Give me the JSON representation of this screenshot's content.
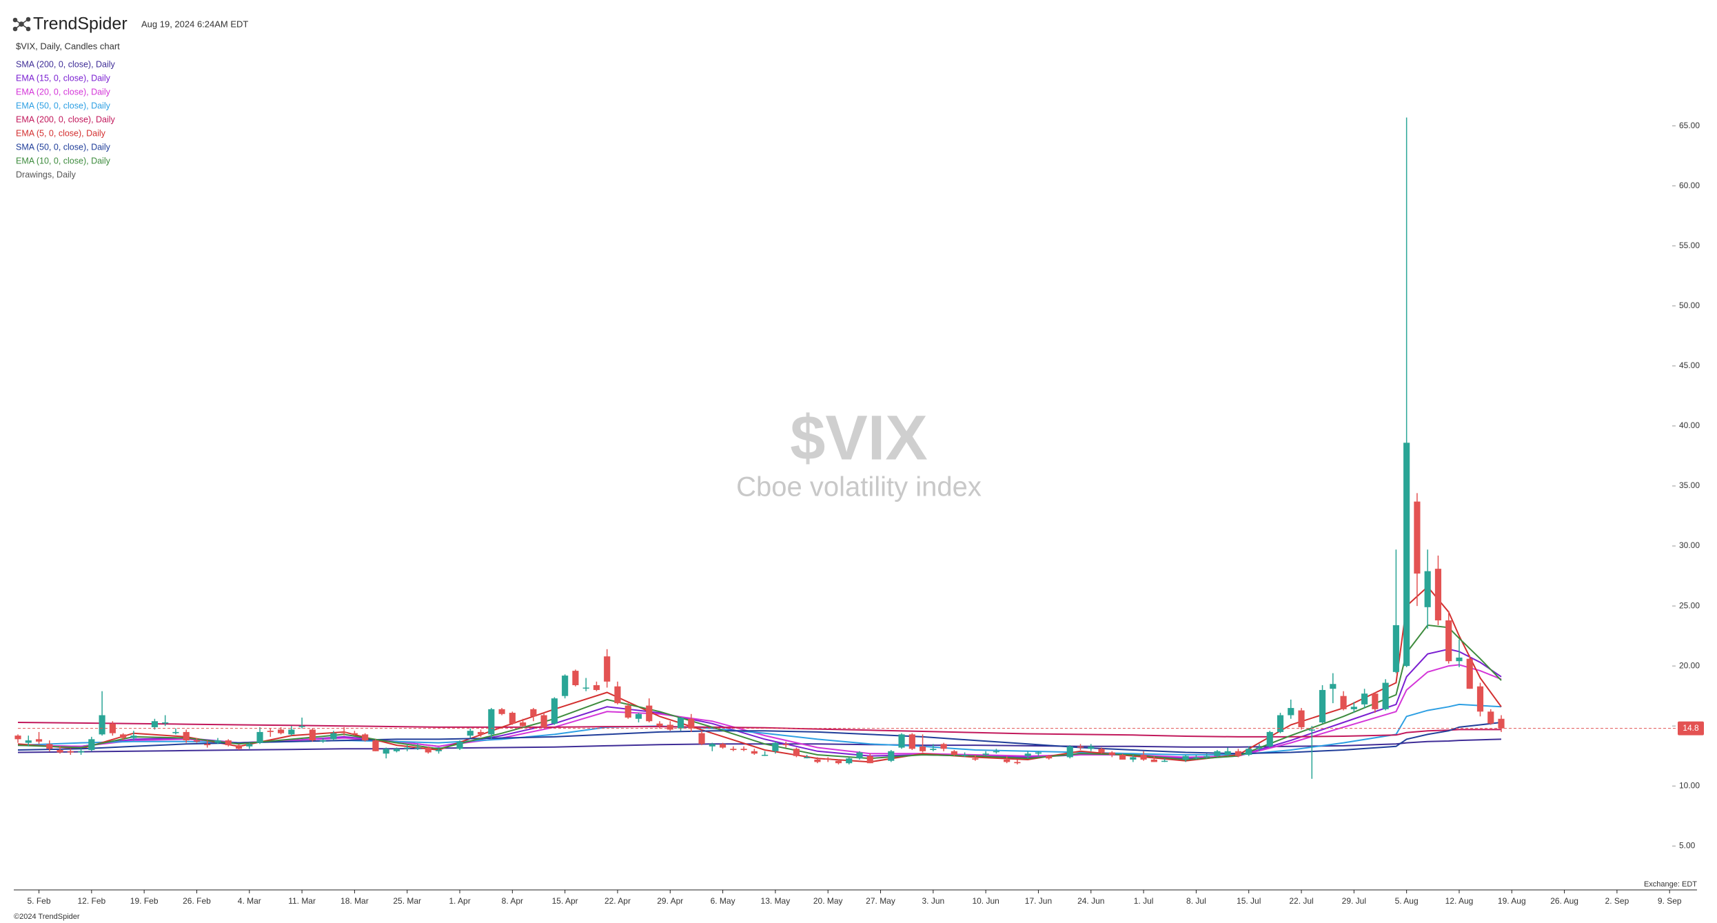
{
  "chart_data": {
    "type": "candlestick",
    "brand": "TrendSpider",
    "timestamp": "Aug 19, 2024 6:24AM EDT",
    "chart_label": "$VIX, Daily, Candles chart",
    "drawings_label": "Drawings, Daily",
    "watermark": {
      "title": "$VIX",
      "subtitle": "Cboe volatility index"
    },
    "exchange": "Exchange: EDT",
    "footer": "©2024 TrendSpider",
    "up_color": "#2aa596",
    "down_color": "#e35252",
    "last_price": 14.8,
    "ylim": [
      1.4,
      66.3
    ],
    "yticks": [
      {
        "value": 5,
        "label": "5.00"
      },
      {
        "value": 10,
        "label": "10.00"
      },
      {
        "value": 15,
        "label": "15.00"
      },
      {
        "value": 20,
        "label": "20.00"
      },
      {
        "value": 25,
        "label": "25.00"
      },
      {
        "value": 30,
        "label": "30.00"
      },
      {
        "value": 35,
        "label": "35.00"
      },
      {
        "value": 40,
        "label": "40.00"
      },
      {
        "value": 45,
        "label": "45.00"
      },
      {
        "value": 50,
        "label": "50.00"
      },
      {
        "value": 55,
        "label": "55.00"
      },
      {
        "value": 60,
        "label": "60.00"
      },
      {
        "value": 65,
        "label": "65.00"
      }
    ],
    "xlim": [
      "02-01",
      "09-12"
    ],
    "xticks": [
      {
        "value": "02-05",
        "label": "5. Feb"
      },
      {
        "value": "02-12",
        "label": "12. Feb"
      },
      {
        "value": "02-19",
        "label": "19. Feb"
      },
      {
        "value": "02-26",
        "label": "26. Feb"
      },
      {
        "value": "03-04",
        "label": "4. Mar"
      },
      {
        "value": "03-11",
        "label": "11. Mar"
      },
      {
        "value": "03-18",
        "label": "18. Mar"
      },
      {
        "value": "03-25",
        "label": "25. Mar"
      },
      {
        "value": "04-01",
        "label": "1. Apr"
      },
      {
        "value": "04-08",
        "label": "8. Apr"
      },
      {
        "value": "04-15",
        "label": "15. Apr"
      },
      {
        "value": "04-22",
        "label": "22. Apr"
      },
      {
        "value": "04-29",
        "label": "29. Apr"
      },
      {
        "value": "05-06",
        "label": "6. May"
      },
      {
        "value": "05-13",
        "label": "13. May"
      },
      {
        "value": "05-20",
        "label": "20. May"
      },
      {
        "value": "05-27",
        "label": "27. May"
      },
      {
        "value": "06-03",
        "label": "3. Jun"
      },
      {
        "value": "06-10",
        "label": "10. Jun"
      },
      {
        "value": "06-17",
        "label": "17. Jun"
      },
      {
        "value": "06-24",
        "label": "24. Jun"
      },
      {
        "value": "07-01",
        "label": "1. Jul"
      },
      {
        "value": "07-08",
        "label": "8. Jul"
      },
      {
        "value": "07-15",
        "label": "15. Jul"
      },
      {
        "value": "07-22",
        "label": "22. Jul"
      },
      {
        "value": "07-29",
        "label": "29. Jul"
      },
      {
        "value": "08-05",
        "label": "5. Aug"
      },
      {
        "value": "08-12",
        "label": "12. Aug"
      },
      {
        "value": "08-19",
        "label": "19. Aug"
      },
      {
        "value": "08-26",
        "label": "26. Aug"
      },
      {
        "value": "09-02",
        "label": "2. Sep"
      },
      {
        "value": "09-09",
        "label": "9. Sep"
      }
    ],
    "x": [
      "02-01",
      "02-02",
      "02-05",
      "02-06",
      "02-07",
      "02-08",
      "02-09",
      "02-12",
      "02-13",
      "02-14",
      "02-15",
      "02-16",
      "02-20",
      "02-21",
      "02-22",
      "02-23",
      "02-26",
      "02-27",
      "02-28",
      "02-29",
      "03-01",
      "03-04",
      "03-05",
      "03-06",
      "03-07",
      "03-08",
      "03-11",
      "03-12",
      "03-13",
      "03-14",
      "03-15",
      "03-18",
      "03-19",
      "03-20",
      "03-21",
      "03-22",
      "03-25",
      "03-26",
      "03-27",
      "03-28",
      "04-01",
      "04-02",
      "04-03",
      "04-04",
      "04-05",
      "04-08",
      "04-09",
      "04-10",
      "04-11",
      "04-12",
      "04-15",
      "04-16",
      "04-17",
      "04-18",
      "04-19",
      "04-22",
      "04-23",
      "04-24",
      "04-25",
      "04-26",
      "04-29",
      "04-30",
      "05-01",
      "05-02",
      "05-03",
      "05-06",
      "05-07",
      "05-08",
      "05-09",
      "05-10",
      "05-13",
      "05-14",
      "05-15",
      "05-16",
      "05-17",
      "05-20",
      "05-21",
      "05-22",
      "05-23",
      "05-24",
      "05-28",
      "05-29",
      "05-30",
      "05-31",
      "06-03",
      "06-04",
      "06-05",
      "06-06",
      "06-07",
      "06-10",
      "06-11",
      "06-12",
      "06-13",
      "06-14",
      "06-17",
      "06-18",
      "06-20",
      "06-21",
      "06-24",
      "06-25",
      "06-26",
      "06-27",
      "06-28",
      "07-01",
      "07-02",
      "07-03",
      "07-05",
      "07-08",
      "07-09",
      "07-10",
      "07-11",
      "07-12",
      "07-15",
      "07-16",
      "07-17",
      "07-18",
      "07-19",
      "07-22",
      "07-23",
      "07-24",
      "07-25",
      "07-26",
      "07-29",
      "07-30",
      "07-31",
      "08-01",
      "08-02",
      "08-05",
      "08-06",
      "08-07",
      "08-08",
      "08-09",
      "08-12",
      "08-13",
      "08-14",
      "08-15",
      "08-16"
    ],
    "open": [
      14.2,
      13.6,
      13.9,
      13.5,
      13.0,
      12.9,
      12.8,
      13.0,
      14.3,
      15.2,
      14.3,
      14.0,
      14.9,
      15.3,
      14.4,
      14.5,
      13.8,
      13.5,
      13.6,
      13.8,
      13.4,
      13.3,
      13.6,
      14.6,
      14.7,
      14.3,
      15.0,
      14.7,
      13.8,
      13.9,
      14.5,
      14.4,
      14.3,
      13.8,
      12.7,
      12.9,
      13.1,
      13.2,
      13.2,
      12.9,
      13.1,
      14.2,
      14.5,
      14.3,
      16.4,
      16.1,
      15.3,
      16.4,
      15.9,
      15.2,
      17.5,
      19.6,
      18.2,
      18.4,
      20.8,
      18.3,
      16.7,
      15.6,
      16.7,
      15.2,
      15.1,
      14.8,
      15.6,
      14.4,
      13.3,
      13.5,
      13.1,
      13.1,
      12.9,
      12.6,
      12.9,
      13.5,
      13.1,
      12.4,
      12.2,
      12.3,
      12.1,
      11.9,
      12.3,
      12.5,
      12.1,
      13.2,
      14.3,
      13.3,
      13.0,
      13.5,
      12.9,
      12.6,
      12.3,
      12.6,
      12.9,
      12.2,
      12.0,
      12.5,
      12.7,
      12.5,
      12.4,
      13.3,
      13.1,
      13.1,
      12.8,
      12.6,
      12.2,
      12.6,
      12.2,
      12.1,
      12.2,
      12.4,
      12.4,
      12.5,
      12.6,
      12.9,
      12.6,
      13.1,
      13.3,
      14.5,
      15.9,
      16.3,
      14.7,
      15.3,
      18.1,
      17.5,
      16.4,
      16.8,
      17.7,
      16.4,
      19.5,
      20.0,
      33.7,
      24.9,
      28.1,
      23.8,
      20.4,
      20.6,
      18.3,
      16.2,
      15.6
    ],
    "high": [
      14.3,
      14.2,
      14.5,
      13.8,
      13.3,
      13.1,
      13.1,
      14.1,
      17.9,
      15.4,
      14.4,
      14.6,
      15.6,
      15.9,
      14.8,
      14.7,
      14.0,
      13.8,
      14.0,
      13.9,
      13.5,
      13.6,
      14.9,
      14.8,
      14.9,
      15.0,
      15.7,
      14.8,
      14.0,
      14.6,
      14.9,
      14.6,
      14.4,
      13.9,
      13.2,
      13.2,
      13.4,
      13.5,
      13.3,
      13.1,
      13.8,
      14.8,
      14.7,
      16.5,
      16.5,
      16.2,
      15.6,
      16.5,
      16.1,
      17.4,
      19.3,
      19.7,
      19.0,
      18.7,
      21.4,
      18.7,
      16.9,
      16.1,
      17.3,
      15.4,
      15.4,
      15.7,
      16.0,
      14.6,
      13.6,
      13.6,
      13.3,
      13.3,
      13.1,
      12.9,
      13.7,
      13.7,
      13.2,
      12.6,
      12.4,
      12.4,
      12.2,
      12.4,
      12.9,
      12.7,
      13.0,
      14.4,
      14.4,
      14.3,
      13.5,
      13.6,
      13.0,
      12.8,
      12.6,
      12.9,
      13.1,
      12.5,
      12.2,
      12.9,
      12.9,
      12.6,
      13.4,
      13.5,
      13.5,
      13.2,
      12.9,
      12.7,
      12.6,
      12.9,
      12.5,
      12.3,
      12.6,
      12.6,
      12.7,
      13.0,
      13.2,
      13.1,
      13.3,
      13.5,
      14.6,
      16.1,
      17.2,
      16.5,
      15.0,
      18.4,
      19.4,
      17.9,
      17.0,
      18.1,
      17.8,
      18.9,
      29.7,
      65.7,
      34.4,
      29.7,
      29.2,
      24.6,
      22.2,
      20.9,
      18.6,
      16.4,
      15.9
    ],
    "low": [
      13.6,
      13.3,
      13.5,
      12.9,
      12.7,
      12.6,
      12.6,
      12.9,
      14.2,
      14.2,
      13.8,
      13.8,
      14.7,
      15.0,
      14.3,
      13.6,
      13.6,
      13.2,
      13.5,
      13.3,
      13.0,
      13.1,
      13.5,
      14.1,
      14.3,
      14.2,
      14.8,
      13.7,
      13.6,
      13.8,
      14.2,
      14.2,
      13.7,
      12.9,
      12.3,
      12.8,
      12.9,
      13.0,
      12.7,
      12.7,
      13.0,
      14.0,
      14.1,
      13.9,
      15.9,
      15.1,
      14.9,
      15.4,
      14.9,
      15.1,
      17.3,
      18.3,
      17.9,
      17.9,
      18.2,
      16.8,
      15.6,
      15.3,
      15.3,
      14.8,
      14.6,
      14.6,
      14.5,
      13.4,
      12.9,
      13.1,
      12.9,
      12.9,
      12.6,
      12.5,
      12.7,
      13.2,
      12.4,
      12.3,
      11.9,
      12.0,
      11.8,
      11.8,
      12.2,
      11.9,
      12.0,
      13.1,
      13.0,
      12.8,
      12.9,
      12.9,
      12.5,
      12.4,
      12.1,
      12.5,
      12.7,
      11.9,
      11.8,
      12.3,
      12.5,
      12.2,
      12.3,
      13.0,
      12.9,
      12.7,
      12.4,
      12.2,
      12.0,
      12.1,
      12.0,
      12.0,
      12.0,
      12.2,
      12.3,
      12.4,
      12.5,
      12.4,
      12.5,
      12.9,
      13.2,
      14.4,
      15.6,
      14.7,
      10.6,
      15.2,
      16.9,
      16.3,
      16.1,
      16.5,
      16.1,
      16.3,
      19.4,
      19.9,
      25.0,
      23.1,
      23.4,
      20.2,
      19.9,
      18.1,
      15.8,
      15.1,
      14.5
    ],
    "close": [
      13.9,
      13.8,
      13.7,
      13.1,
      12.8,
      12.8,
      12.9,
      13.9,
      15.9,
      14.4,
      14.0,
      14.2,
      15.4,
      15.3,
      14.5,
      13.8,
      13.7,
      13.4,
      13.8,
      13.4,
      13.1,
      13.5,
      14.5,
      14.5,
      14.4,
      14.7,
      15.0,
      13.8,
      13.8,
      14.4,
      14.4,
      14.3,
      13.8,
      12.9,
      13.1,
      13.1,
      13.2,
      13.2,
      12.8,
      13.0,
      13.7,
      14.6,
      14.3,
      16.4,
      16.0,
      15.2,
      15.0,
      15.8,
      14.9,
      17.3,
      19.2,
      18.4,
      18.2,
      18.0,
      18.7,
      16.9,
      15.7,
      16.0,
      15.4,
      15.0,
      14.7,
      15.7,
      14.8,
      13.5,
      13.5,
      13.2,
      13.0,
      13.0,
      12.7,
      12.6,
      13.6,
      13.4,
      12.5,
      12.4,
      12.0,
      12.2,
      11.9,
      12.3,
      12.8,
      11.9,
      12.9,
      14.3,
      13.1,
      12.9,
      13.1,
      13.1,
      12.6,
      12.6,
      12.2,
      12.7,
      12.9,
      12.0,
      11.9,
      12.7,
      12.8,
      12.3,
      13.3,
      13.2,
      13.3,
      12.8,
      12.6,
      12.2,
      12.4,
      12.2,
      12.0,
      12.1,
      12.5,
      12.4,
      12.5,
      12.9,
      12.9,
      12.5,
      13.1,
      13.2,
      14.5,
      15.9,
      16.5,
      14.9,
      14.7,
      18.0,
      18.5,
      16.4,
      16.6,
      17.7,
      16.4,
      18.6,
      23.4,
      38.6,
      27.7,
      27.9,
      23.8,
      20.4,
      20.7,
      18.1,
      16.2,
      15.2,
      14.8
    ],
    "indicators": {
      "x": [
        "02-01",
        "02-09",
        "02-16",
        "02-23",
        "03-01",
        "03-08",
        "03-15",
        "03-22",
        "03-28",
        "04-05",
        "04-12",
        "04-19",
        "04-26",
        "05-03",
        "05-10",
        "05-17",
        "05-24",
        "05-31",
        "06-07",
        "06-14",
        "06-21",
        "06-28",
        "07-05",
        "07-12",
        "07-19",
        "07-26",
        "08-02",
        "08-05",
        "08-07",
        "08-09",
        "08-12",
        "08-14",
        "08-16"
      ],
      "series": [
        {
          "name": "SMA (200, 0, close), Daily",
          "color": "#3f2d97",
          "values": [
            12.8,
            12.85,
            12.9,
            12.95,
            13.0,
            13.05,
            13.1,
            13.1,
            13.15,
            13.2,
            13.25,
            13.35,
            13.45,
            13.5,
            13.5,
            13.5,
            13.45,
            13.4,
            13.4,
            13.35,
            13.3,
            13.3,
            13.25,
            13.25,
            13.3,
            13.35,
            13.5,
            13.6,
            13.7,
            13.75,
            13.8,
            13.85,
            13.9
          ]
        },
        {
          "name": "EMA (15, 0, close), Daily",
          "color": "#7a1fd1",
          "values": [
            13.4,
            13.3,
            13.9,
            14.0,
            13.6,
            13.8,
            14.1,
            13.7,
            13.3,
            14.2,
            15.2,
            16.6,
            16.1,
            15.2,
            13.9,
            12.9,
            12.5,
            12.6,
            12.5,
            12.4,
            12.6,
            12.6,
            12.3,
            12.5,
            13.8,
            15.3,
            16.8,
            19.1,
            21.0,
            21.4,
            21.2,
            20.3,
            19.1
          ]
        },
        {
          "name": "EMA (20, 0, close), Daily",
          "color": "#d435d8",
          "values": [
            13.4,
            13.3,
            13.8,
            13.9,
            13.6,
            13.8,
            14.0,
            13.7,
            13.3,
            14.0,
            14.9,
            16.2,
            16.0,
            15.4,
            14.2,
            13.2,
            12.7,
            12.7,
            12.6,
            12.5,
            12.6,
            12.6,
            12.4,
            12.5,
            13.6,
            14.9,
            16.2,
            18.0,
            19.5,
            20.0,
            20.1,
            19.6,
            18.9
          ]
        },
        {
          "name": "EMA (50, 0, close), Daily",
          "color": "#2d9fe3",
          "values": [
            13.4,
            13.6,
            13.7,
            13.7,
            13.6,
            13.7,
            13.8,
            13.7,
            13.6,
            13.9,
            14.3,
            14.9,
            15.0,
            14.8,
            14.4,
            13.9,
            13.5,
            13.3,
            13.0,
            12.9,
            12.8,
            12.7,
            12.6,
            12.6,
            13.0,
            13.6,
            14.3,
            15.8,
            16.3,
            16.6,
            16.8,
            16.7,
            16.6
          ]
        },
        {
          "name": "EMA (200, 0, close), Daily",
          "color": "#c2185b",
          "values": [
            15.3,
            15.25,
            15.2,
            15.15,
            15.1,
            15.05,
            15.0,
            14.95,
            14.9,
            14.9,
            14.9,
            14.95,
            14.95,
            14.9,
            14.85,
            14.75,
            14.65,
            14.55,
            14.45,
            14.35,
            14.3,
            14.25,
            14.15,
            14.1,
            14.1,
            14.15,
            14.25,
            14.45,
            14.6,
            14.65,
            14.7,
            14.7,
            14.7
          ]
        },
        {
          "name": "EMA (5, 0, close), Daily",
          "color": "#d32f2f",
          "values": [
            13.5,
            13.1,
            14.4,
            14.1,
            13.3,
            14.2,
            14.5,
            13.4,
            13.0,
            14.9,
            16.4,
            17.8,
            15.8,
            14.4,
            13.0,
            12.3,
            12.0,
            12.7,
            12.4,
            12.2,
            12.9,
            12.5,
            12.1,
            12.6,
            15.1,
            16.5,
            18.6,
            25.0,
            26.6,
            24.5,
            22.5,
            19.0,
            16.6
          ]
        },
        {
          "name": "SMA (50, 0, close), Daily",
          "color": "#1f3d99",
          "values": [
            13.0,
            13.1,
            13.3,
            13.5,
            13.6,
            13.7,
            13.8,
            13.9,
            13.9,
            14.0,
            14.1,
            14.3,
            14.5,
            14.6,
            14.6,
            14.5,
            14.3,
            14.1,
            13.8,
            13.5,
            13.2,
            13.0,
            12.8,
            12.7,
            12.8,
            13.0,
            13.3,
            13.9,
            14.3,
            14.6,
            14.9,
            15.1,
            15.3
          ]
        },
        {
          "name": "EMA (10, 0, close), Daily",
          "color": "#3d8b3d",
          "values": [
            13.4,
            13.2,
            14.1,
            14.0,
            13.5,
            13.9,
            14.3,
            13.6,
            13.1,
            14.4,
            15.6,
            17.2,
            16.2,
            14.9,
            13.5,
            12.6,
            12.3,
            12.6,
            12.5,
            12.3,
            12.7,
            12.6,
            12.2,
            12.5,
            14.2,
            15.8,
            17.6,
            21.1,
            23.4,
            23.2,
            22.3,
            20.6,
            18.8
          ]
        }
      ]
    }
  }
}
